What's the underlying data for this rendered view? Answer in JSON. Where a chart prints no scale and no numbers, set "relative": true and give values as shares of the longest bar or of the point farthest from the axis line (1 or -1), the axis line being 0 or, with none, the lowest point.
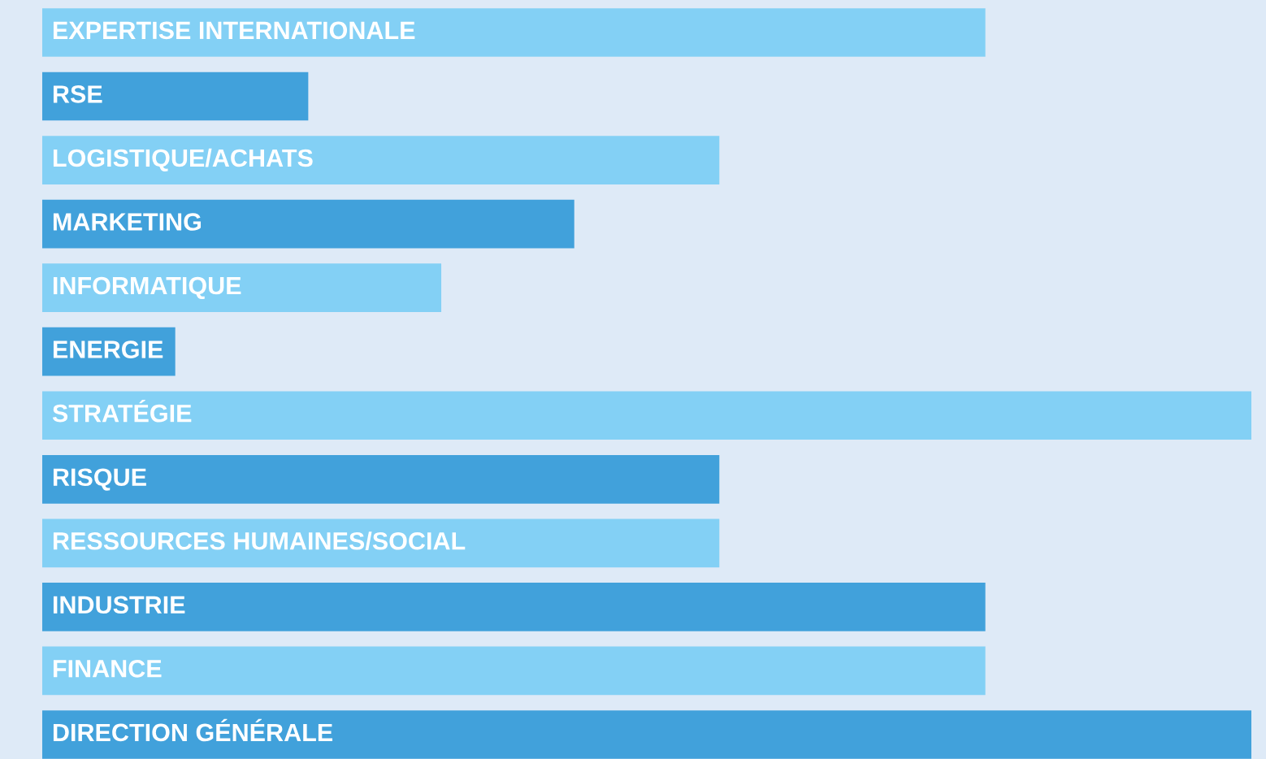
{
  "chart_data": {
    "type": "bar",
    "orientation": "horizontal",
    "relative": true,
    "categories": [
      "EXPERTISE INTERNATIONALE",
      "RSE",
      "LOGISTIQUE/ACHATS",
      "MARKETING",
      "INFORMATIQUE",
      "ENERGIE",
      "STRATÉGIE",
      "RISQUE",
      "RESSOURCES HUMAINES/SOCIAL",
      "INDUSTRIE",
      "FINANCE",
      "DIRECTION GÉNÉRALE"
    ],
    "values": [
      0.78,
      0.22,
      0.56,
      0.44,
      0.33,
      0.11,
      1,
      0.56,
      0.56,
      0.78,
      0.78,
      1
    ],
    "colors": [
      "#83d0f5",
      "#41a1db",
      "#83d0f5",
      "#41a1db",
      "#83d0f5",
      "#41a1db",
      "#83d0f5",
      "#41a1db",
      "#83d0f5",
      "#41a1db",
      "#83d0f5",
      "#41a1db"
    ],
    "legend": false
  }
}
